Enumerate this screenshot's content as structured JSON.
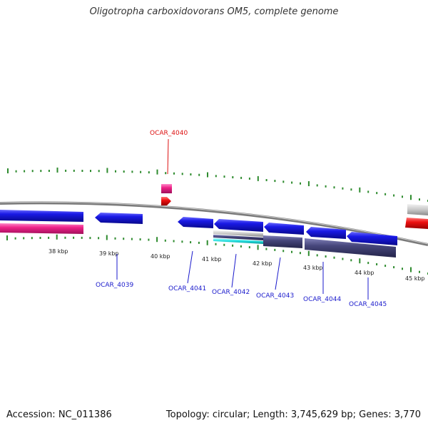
{
  "title": "Oligotropha carboxidovorans OM5, complete genome",
  "footer": {
    "accession": "Accession: NC_011386",
    "summary": "Topology: circular; Length: 3,745,629 bp; Genes: 3,770"
  },
  "colors": {
    "backbone": "#8a8a8a",
    "tick": "#2e8b2e",
    "gene_blue": "#1a1ae6",
    "gene_pink": "#ee2288",
    "gene_red": "#ee1111",
    "gene_slate": "#45457a",
    "gene_cyan": "#22dddd",
    "gene_gray": "#c8c8c8",
    "label_blue": "#1a1acc",
    "label_red": "#dd1111"
  },
  "scale_labels": [
    "38 kbp",
    "39 kbp",
    "40 kbp",
    "41 kbp",
    "42 kbp",
    "43 kbp",
    "44 kbp",
    "45 kbp"
  ],
  "gene_labels": [
    {
      "text": "OCAR_4040",
      "color": "red"
    },
    {
      "text": "OCAR_4039",
      "color": "blue"
    },
    {
      "text": "OCAR_4041",
      "color": "blue"
    },
    {
      "text": "OCAR_4042",
      "color": "blue"
    },
    {
      "text": "OCAR_4043",
      "color": "blue"
    },
    {
      "text": "OCAR_4044",
      "color": "blue"
    },
    {
      "text": "OCAR_4045",
      "color": "blue"
    }
  ]
}
